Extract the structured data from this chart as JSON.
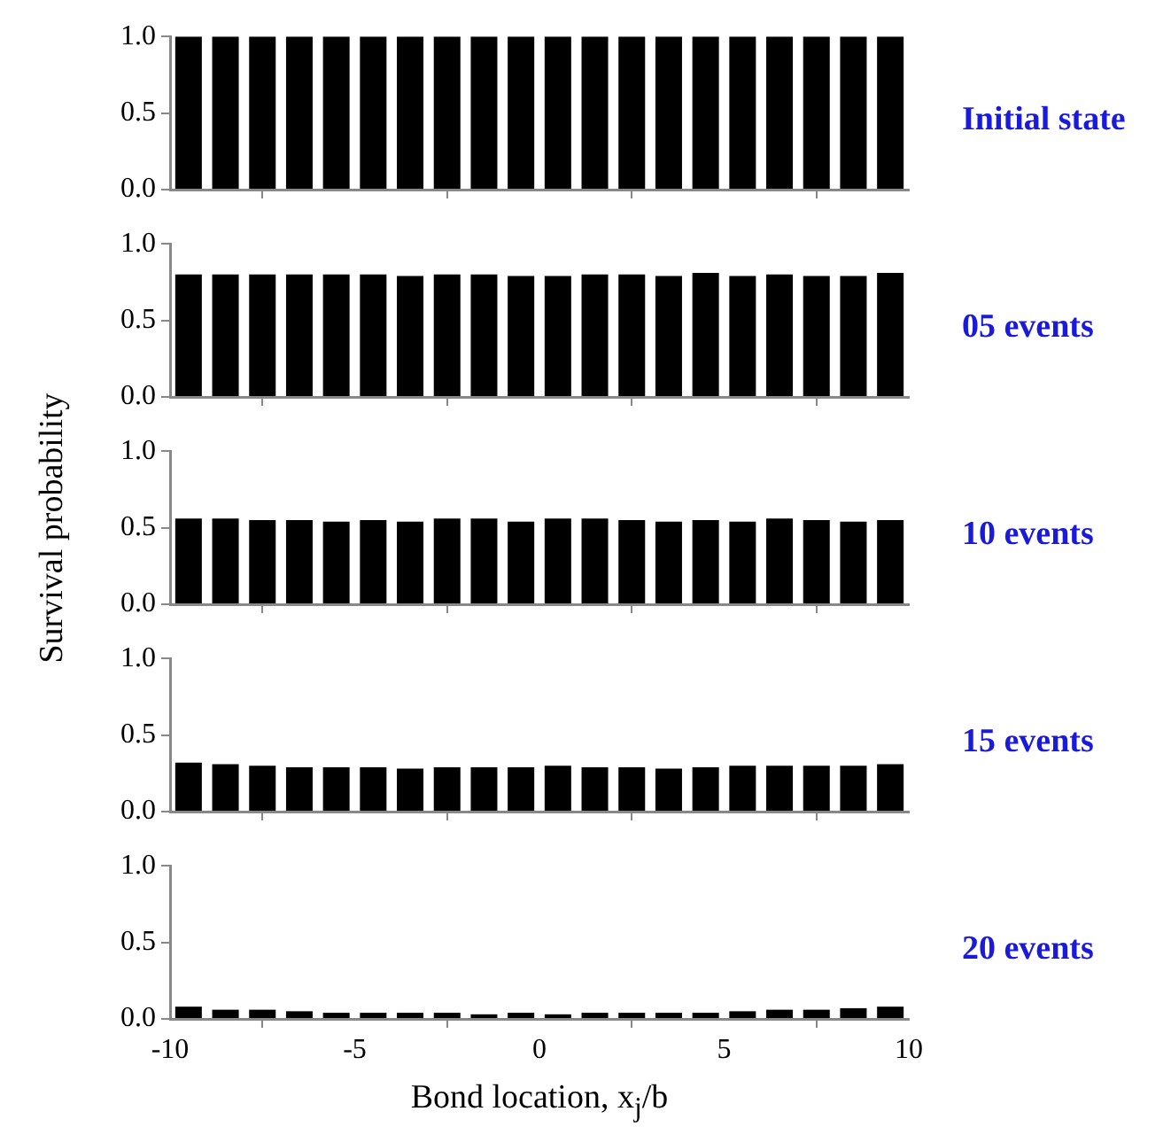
{
  "chart_data": [
    {
      "type": "bar",
      "annotations": [
        "Initial state"
      ],
      "x": [
        -9.5,
        -8.5,
        -7.5,
        -6.5,
        -5.5,
        -4.5,
        -3.5,
        -2.5,
        -1.5,
        -0.5,
        0.5,
        1.5,
        2.5,
        3.5,
        4.5,
        5.5,
        6.5,
        7.5,
        8.5,
        9.5
      ],
      "series": [
        {
          "color": "#000000",
          "values": [
            1.0,
            1.0,
            1.0,
            1.0,
            1.0,
            1.0,
            1.0,
            1.0,
            1.0,
            1.0,
            1.0,
            1.0,
            1.0,
            1.0,
            1.0,
            1.0,
            1.0,
            1.0,
            1.0,
            1.0
          ]
        }
      ],
      "xlim": [
        -10,
        10
      ],
      "xticks": [
        -10,
        -5,
        0,
        5,
        10
      ],
      "ylim": [
        0,
        1
      ],
      "yticks": [
        {
          "value": 0,
          "label": "0.0"
        },
        {
          "value": 0.5,
          "label": "0.5"
        },
        {
          "value": 1,
          "label": "1.0"
        }
      ],
      "tick_labels": "y"
    },
    {
      "type": "bar",
      "annotations": [
        "05 events"
      ],
      "x": [
        -9.5,
        -8.5,
        -7.5,
        -6.5,
        -5.5,
        -4.5,
        -3.5,
        -2.5,
        -1.5,
        -0.5,
        0.5,
        1.5,
        2.5,
        3.5,
        4.5,
        5.5,
        6.5,
        7.5,
        8.5,
        9.5
      ],
      "series": [
        {
          "color": "#000000",
          "values": [
            0.8,
            0.8,
            0.8,
            0.8,
            0.8,
            0.8,
            0.79,
            0.8,
            0.8,
            0.79,
            0.79,
            0.8,
            0.8,
            0.79,
            0.81,
            0.79,
            0.8,
            0.79,
            0.79,
            0.81
          ]
        }
      ],
      "xlim": [
        -10,
        10
      ],
      "xticks": [
        -10,
        -5,
        0,
        5,
        10
      ],
      "ylim": [
        0,
        1
      ],
      "yticks": [
        {
          "value": 0,
          "label": "0.0"
        },
        {
          "value": 0.5,
          "label": "0.5"
        },
        {
          "value": 1,
          "label": "1.0"
        }
      ],
      "tick_labels": "y"
    },
    {
      "type": "bar",
      "annotations": [
        "10 events"
      ],
      "ylabel": "Survival probability",
      "x": [
        -9.5,
        -8.5,
        -7.5,
        -6.5,
        -5.5,
        -4.5,
        -3.5,
        -2.5,
        -1.5,
        -0.5,
        0.5,
        1.5,
        2.5,
        3.5,
        4.5,
        5.5,
        6.5,
        7.5,
        8.5,
        9.5
      ],
      "series": [
        {
          "color": "#000000",
          "values": [
            0.56,
            0.56,
            0.55,
            0.55,
            0.54,
            0.55,
            0.54,
            0.56,
            0.56,
            0.54,
            0.56,
            0.56,
            0.55,
            0.54,
            0.55,
            0.54,
            0.56,
            0.55,
            0.54,
            0.55
          ]
        }
      ],
      "xlim": [
        -10,
        10
      ],
      "xticks": [
        -10,
        -5,
        0,
        5,
        10
      ],
      "ylim": [
        0,
        1
      ],
      "yticks": [
        {
          "value": 0,
          "label": "0.0"
        },
        {
          "value": 0.5,
          "label": "0.5"
        },
        {
          "value": 1,
          "label": "1.0"
        }
      ],
      "tick_labels": "y"
    },
    {
      "type": "bar",
      "annotations": [
        "15 events"
      ],
      "x": [
        -9.5,
        -8.5,
        -7.5,
        -6.5,
        -5.5,
        -4.5,
        -3.5,
        -2.5,
        -1.5,
        -0.5,
        0.5,
        1.5,
        2.5,
        3.5,
        4.5,
        5.5,
        6.5,
        7.5,
        8.5,
        9.5
      ],
      "series": [
        {
          "color": "#000000",
          "values": [
            0.32,
            0.31,
            0.3,
            0.29,
            0.29,
            0.29,
            0.28,
            0.29,
            0.29,
            0.29,
            0.3,
            0.29,
            0.29,
            0.28,
            0.29,
            0.3,
            0.3,
            0.3,
            0.3,
            0.31
          ]
        }
      ],
      "xlim": [
        -10,
        10
      ],
      "xticks": [
        -10,
        -5,
        0,
        5,
        10
      ],
      "ylim": [
        0,
        1
      ],
      "yticks": [
        {
          "value": 0,
          "label": "0.0"
        },
        {
          "value": 0.5,
          "label": "0.5"
        },
        {
          "value": 1,
          "label": "1.0"
        }
      ],
      "tick_labels": "y"
    },
    {
      "type": "bar",
      "annotations": [
        "20 events"
      ],
      "xlabel": "Bond location, x$_{j}$/b",
      "x": [
        -9.5,
        -8.5,
        -7.5,
        -6.5,
        -5.5,
        -4.5,
        -3.5,
        -2.5,
        -1.5,
        -0.5,
        0.5,
        1.5,
        2.5,
        3.5,
        4.5,
        5.5,
        6.5,
        7.5,
        8.5,
        9.5
      ],
      "series": [
        {
          "color": "#000000",
          "values": [
            0.08,
            0.06,
            0.06,
            0.05,
            0.04,
            0.04,
            0.04,
            0.04,
            0.03,
            0.04,
            0.03,
            0.04,
            0.04,
            0.04,
            0.04,
            0.05,
            0.06,
            0.06,
            0.07,
            0.08
          ]
        }
      ],
      "xlim": [
        -10,
        10
      ],
      "xticks": [
        -10,
        -5,
        0,
        5,
        10
      ],
      "ylim": [
        0,
        1
      ],
      "yticks": [
        {
          "value": 0,
          "label": "0.0"
        },
        {
          "value": 0.5,
          "label": "0.5"
        },
        {
          "value": 1,
          "label": "1.0"
        }
      ]
    }
  ]
}
